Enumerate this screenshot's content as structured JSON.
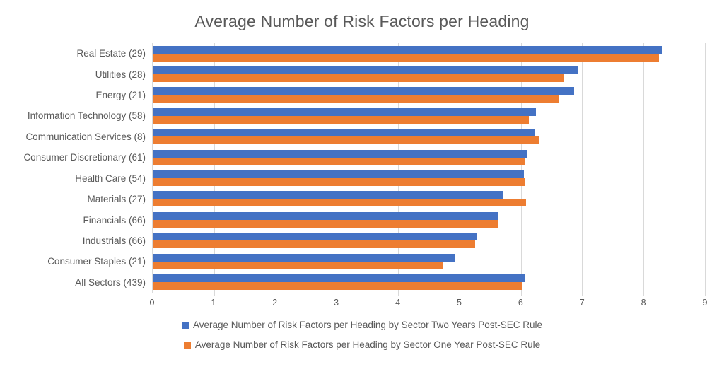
{
  "title": "Average Number of Risk Factors per Heading",
  "colors": {
    "series_two_years": "#4472C4",
    "series_one_year": "#ED7D31",
    "gridline": "#D9D9D9",
    "text": "#595959",
    "background": "#FFFFFF"
  },
  "chart_data": {
    "type": "bar",
    "orientation": "horizontal",
    "title": "Average Number of Risk Factors per Heading",
    "categories": [
      "Real Estate (29)",
      "Utilities (28)",
      "Energy (21)",
      "Information Technology (58)",
      "Communication Services (8)",
      "Consumer Discretionary (61)",
      "Health Care (54)",
      "Materials (27)",
      "Financials (66)",
      "Industrials (66)",
      "Consumer Staples (21)",
      "All Sectors (439)"
    ],
    "series": [
      {
        "name": "Average Number of Risk Factors per Heading by Sector Two Years Post-SEC Rule",
        "color": "#4472C4",
        "values": [
          8.3,
          6.93,
          6.87,
          6.25,
          6.22,
          6.1,
          6.05,
          5.7,
          5.64,
          5.29,
          4.93,
          6.06
        ]
      },
      {
        "name": "Average Number of Risk Factors per Heading by Sector One Year Post-SEC Rule",
        "color": "#ED7D31",
        "values": [
          8.25,
          6.7,
          6.62,
          6.13,
          6.3,
          6.07,
          6.06,
          6.08,
          5.62,
          5.25,
          4.74,
          6.02
        ]
      }
    ],
    "xlabel": "",
    "ylabel": "",
    "xlim": [
      0,
      9
    ],
    "xticks": [
      0,
      1,
      2,
      3,
      4,
      5,
      6,
      7,
      8,
      9
    ],
    "grid": true,
    "legend_position": "bottom"
  }
}
